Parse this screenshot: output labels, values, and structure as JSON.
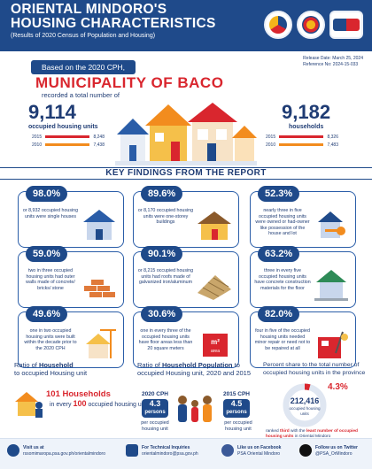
{
  "header": {
    "title_line1": "ORIENTAL MINDORO'S",
    "title_line2": "HOUSING CHARACTERISTICS",
    "subtitle": "(Results of 2020 Census of Population and Housing)",
    "release_date": "Release Date: March 25, 2024",
    "reference_no": "Reference No: 2024-15-033"
  },
  "banner": {
    "based_on": "Based on the 2020 CPH,",
    "municipality": "MUNICIPALITY OF BACO",
    "recorded": "recorded a total number of",
    "housing_units_value": "9,114",
    "housing_units_label": "occupied housing units",
    "households_value": "9,182",
    "households_label": "households",
    "housing_trend": [
      {
        "year": "2015",
        "value": "8,248"
      },
      {
        "year": "2010",
        "value": "7,438"
      }
    ],
    "household_trend": [
      {
        "year": "2015",
        "value": "8,326"
      },
      {
        "year": "2010",
        "value": "7,483"
      }
    ]
  },
  "key_findings_title": "KEY FINDINGS FROM THE REPORT",
  "findings": [
    {
      "pct": "98.0%",
      "text": "or 8,932 occupied housing units were single houses"
    },
    {
      "pct": "89.6%",
      "text": "or 8,170 occupied housing units were one-storey buildings"
    },
    {
      "pct": "52.3%",
      "text": "nearly three in five occupied housing units were owned or had-owner like possession of the house and lot"
    },
    {
      "pct": "59.0%",
      "text": "two in three occupied housing units had outer walls made of concrete/ bricks/ stone"
    },
    {
      "pct": "90.1%",
      "text": "or 8,215 occupied housing units had roofs made of galvanized iron/aluminum"
    },
    {
      "pct": "63.2%",
      "text": "three in every five occupied housing units have concrete construction materials for the floor"
    },
    {
      "pct": "49.6%",
      "text": "one in two occupied housing units were built within the decade prior to the 2020 CPH"
    },
    {
      "pct": "30.6%",
      "text": "one in every three of the occupied housing units have floor areas less than 20 square meters"
    },
    {
      "pct": "82.0%",
      "text": "four in five of the occupied housing units needed minor repair or need not to be repaired at all"
    }
  ],
  "ratio_hh": {
    "title_a": "Ratio of ",
    "title_b": "Household",
    "title_c": "to occupied Housing unit",
    "households": "101 Households",
    "in_every": "in every",
    "every_n": "100",
    "occupied": "occupied housing units"
  },
  "ratio_pop": {
    "title_a": "Ratio of ",
    "title_b": "Household Population",
    "title_c": "to occupied Housing unit, 2020 and 2015",
    "year_2020": "2020 CPH",
    "value_2020": "4.3",
    "unit_2020": "persons",
    "note_2020": "per occupied housing unit",
    "year_2015": "2015 CPH",
    "value_2015": "4.5",
    "unit_2015": "persons",
    "note_2015": "per occupied housing unit"
  },
  "share": {
    "title": "Percent share to the total number of occupied housing units in the province",
    "pct": "4.3%",
    "total": "212,416",
    "total_label": "occupied housing units",
    "note_a": "ranked ",
    "note_b": "third",
    "note_c": " with the ",
    "note_d": "least number of occupied housing units",
    "note_e": " in Oriental Mindoro"
  },
  "footer": {
    "visit_label": "Visit us at",
    "visit_url": "rssomimaropa.psa.gov.ph/orientalmindoro",
    "tech_label": "For Technical Inquiries",
    "tech_email": "orientalmindoro@psa.gov.ph",
    "fb_label": "Like us on Facebook",
    "fb_name": "PSA Oriental Mindoro",
    "tw_label": "Follow us on Twitter",
    "tw_name": "@PSA_OrMindoro"
  },
  "colors": {
    "navy": "#1f4a8a",
    "red": "#d9262e",
    "orange": "#f28c1e",
    "light": "#eef3fa"
  }
}
